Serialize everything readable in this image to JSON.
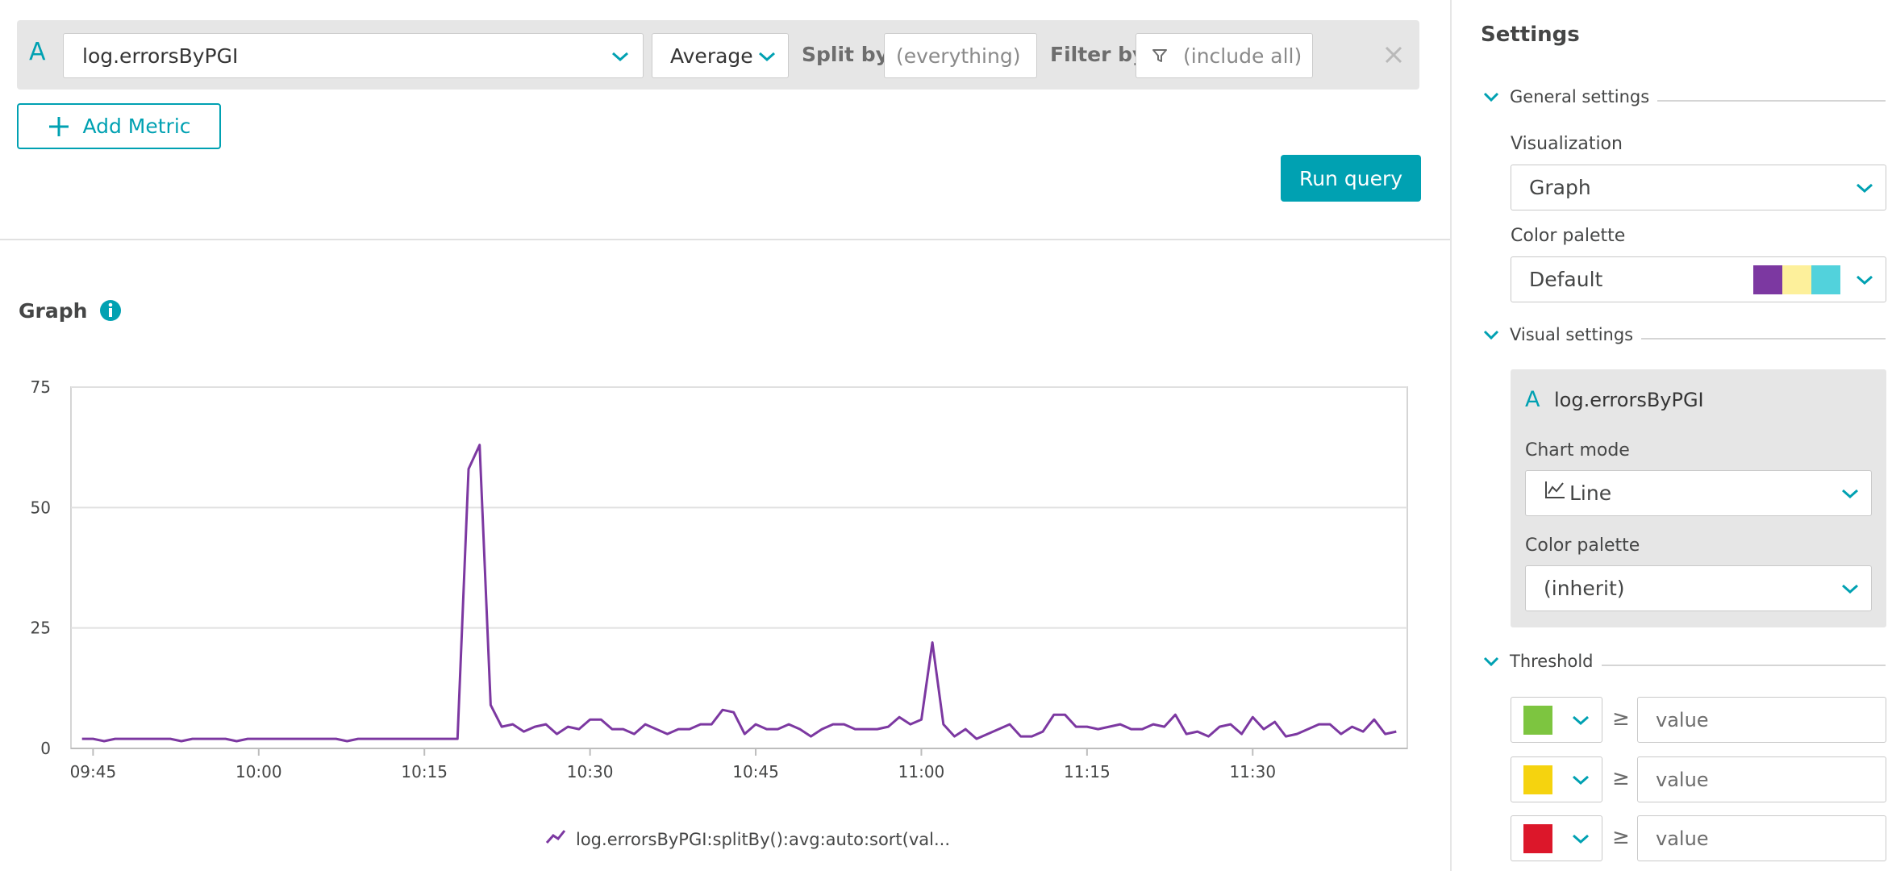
{
  "query": {
    "letter": "A",
    "metric": "log.errorsByPGI",
    "aggregation": "Average",
    "split_by_label": "Split by",
    "split_by_placeholder": "(everything)",
    "filter_by_label": "Filter by",
    "filter_by_placeholder": "(include all)"
  },
  "add_metric_label": "Add Metric",
  "run_query_label": "Run query",
  "graph": {
    "title": "Graph",
    "legend": "log.errorsByPGI:splitBy():avg:auto:sort(val..."
  },
  "chart_data": {
    "type": "line",
    "x_unit": "time",
    "ylim": [
      0,
      75
    ],
    "yticks": [
      "0",
      "25",
      "50",
      "75"
    ],
    "xticks": [
      "09:45",
      "10:00",
      "10:15",
      "10:30",
      "10:45",
      "11:00",
      "11:15",
      "11:30"
    ],
    "grid": true,
    "legend_position": "bottom",
    "color": "#7c38a1",
    "series": [
      {
        "name": "log.errorsByPGI:splitBy():avg:auto:sort(val...",
        "x": [
          "09:44",
          "09:45",
          "09:46",
          "09:47",
          "09:48",
          "09:49",
          "09:50",
          "09:51",
          "09:52",
          "09:53",
          "09:54",
          "09:55",
          "09:56",
          "09:57",
          "09:58",
          "09:59",
          "10:00",
          "10:01",
          "10:02",
          "10:03",
          "10:04",
          "10:05",
          "10:06",
          "10:07",
          "10:08",
          "10:09",
          "10:10",
          "10:11",
          "10:12",
          "10:13",
          "10:14",
          "10:15",
          "10:16",
          "10:17",
          "10:18",
          "10:19",
          "10:20",
          "10:21",
          "10:22",
          "10:23",
          "10:24",
          "10:25",
          "10:26",
          "10:27",
          "10:28",
          "10:29",
          "10:30",
          "10:31",
          "10:32",
          "10:33",
          "10:34",
          "10:35",
          "10:36",
          "10:37",
          "10:38",
          "10:39",
          "10:40",
          "10:41",
          "10:42",
          "10:43",
          "10:44",
          "10:45",
          "10:46",
          "10:47",
          "10:48",
          "10:49",
          "10:50",
          "10:51",
          "10:52",
          "10:53",
          "10:54",
          "10:55",
          "10:56",
          "10:57",
          "10:58",
          "10:59",
          "11:00",
          "11:01",
          "11:02",
          "11:03",
          "11:04",
          "11:05",
          "11:06",
          "11:07",
          "11:08",
          "11:09",
          "11:10",
          "11:11",
          "11:12",
          "11:13",
          "11:14",
          "11:15",
          "11:16",
          "11:17",
          "11:18",
          "11:19",
          "11:20",
          "11:21",
          "11:22",
          "11:23",
          "11:24",
          "11:25",
          "11:26",
          "11:27",
          "11:28",
          "11:29",
          "11:30",
          "11:31",
          "11:32",
          "11:33",
          "11:34",
          "11:35",
          "11:36",
          "11:37",
          "11:38",
          "11:39",
          "11:40",
          "11:41",
          "11:42",
          "11:43"
        ],
        "values": [
          2,
          2,
          1.5,
          2,
          2,
          2,
          2,
          2,
          2,
          1.5,
          2,
          2,
          2,
          2,
          1.5,
          2,
          2,
          2,
          2,
          2,
          2,
          2,
          2,
          2,
          1.5,
          2,
          2,
          2,
          2,
          2,
          2,
          2,
          2,
          2,
          2,
          58,
          63,
          9,
          4.5,
          5,
          3.5,
          4.5,
          5,
          3,
          4.5,
          4,
          6,
          6,
          4,
          4,
          3,
          5,
          4,
          3,
          4,
          4,
          5,
          5,
          8,
          7.5,
          3,
          5,
          4,
          4,
          5,
          4,
          2.5,
          4,
          5,
          5,
          4,
          4,
          4,
          4.5,
          6.5,
          5,
          6,
          22,
          5,
          2.5,
          4,
          2,
          3,
          4,
          5,
          2.5,
          2.5,
          3.5,
          7,
          7,
          4.5,
          4.5,
          4,
          4.5,
          5,
          4,
          4,
          5,
          4.5,
          7,
          3,
          3.5,
          2.5,
          4.5,
          5,
          3,
          6.5,
          4,
          5.5,
          2.5,
          3,
          4,
          5,
          5,
          3,
          4.5,
          3.5,
          6,
          3,
          3.5
        ]
      }
    ]
  },
  "settings": {
    "title": "Settings",
    "general_settings": "General settings",
    "visualization_label": "Visualization",
    "visualization_value": "Graph",
    "color_palette_label": "Color palette",
    "color_palette_value": "Default",
    "palette_colors": [
      "#7c38a1",
      "#fdf09b",
      "#52d2dc"
    ],
    "visual_settings": "Visual settings",
    "query_letter": "A",
    "query_metric": "log.errorsByPGI",
    "chart_mode_label": "Chart mode",
    "chart_mode_value": "Line",
    "series_palette_label": "Color palette",
    "series_palette_value": "(inherit)",
    "threshold": "Threshold",
    "threshold_rows": [
      {
        "color": "#7dc540",
        "operator": "≥",
        "placeholder": "value"
      },
      {
        "color": "#f5d30f",
        "operator": "≥",
        "placeholder": "value"
      },
      {
        "color": "#dc172a",
        "operator": "≥",
        "placeholder": "value"
      }
    ]
  },
  "accent_color": "#00a1b2"
}
